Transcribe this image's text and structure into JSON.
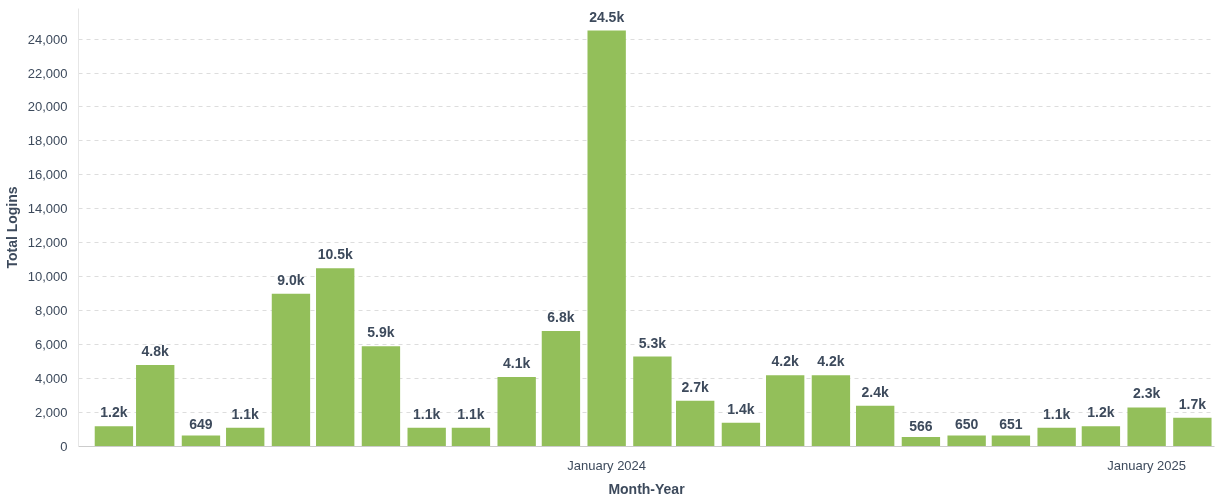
{
  "chart_data": {
    "type": "bar",
    "xlabel": "Month-Year",
    "ylabel": "Total Logins",
    "x": [
      "2023-02",
      "2023-03",
      "2023-04",
      "2023-05",
      "2023-06",
      "2023-07",
      "2023-08",
      "2023-09",
      "2023-10",
      "2023-11",
      "2023-12",
      "2024-01",
      "2024-02",
      "2024-03",
      "2024-04",
      "2024-05",
      "2024-06",
      "2024-07",
      "2024-08",
      "2024-09",
      "2024-10",
      "2024-11",
      "2024-12",
      "2025-01",
      "2025-02"
    ],
    "values": [
      1200,
      4800,
      649,
      1100,
      9000,
      10500,
      5900,
      1100,
      1100,
      4100,
      6800,
      24500,
      5300,
      2700,
      1400,
      4200,
      4200,
      2400,
      566,
      650,
      651,
      1100,
      1200,
      2300,
      1700
    ],
    "value_labels": [
      "1.2k",
      "4.8k",
      "649",
      "1.1k",
      "9.0k",
      "10.5k",
      "5.9k",
      "1.1k",
      "1.1k",
      "4.1k",
      "6.8k",
      "24.5k",
      "5.3k",
      "2.7k",
      "1.4k",
      "4.2k",
      "4.2k",
      "2.4k",
      "566",
      "650",
      "651",
      "1.1k",
      "1.2k",
      "2.3k",
      "1.7k"
    ],
    "color": "#93bf5a",
    "xlim": [
      "2023-01-08",
      "2025-02-16"
    ],
    "xticks": [
      {
        "value": "2024-01",
        "label": "January 2024"
      },
      {
        "value": "2025-01",
        "label": "January 2025"
      }
    ],
    "ylim": [
      0,
      25800
    ],
    "yticks": [
      {
        "value": 0,
        "label": "0"
      },
      {
        "value": 2000,
        "label": "2,000"
      },
      {
        "value": 4000,
        "label": "4,000"
      },
      {
        "value": 6000,
        "label": "6,000"
      },
      {
        "value": 8000,
        "label": "8,000"
      },
      {
        "value": 10000,
        "label": "10,000"
      },
      {
        "value": 12000,
        "label": "12,000"
      },
      {
        "value": 14000,
        "label": "14,000"
      },
      {
        "value": 16000,
        "label": "16,000"
      },
      {
        "value": 18000,
        "label": "18,000"
      },
      {
        "value": 20000,
        "label": "20,000"
      },
      {
        "value": 22000,
        "label": "22,000"
      },
      {
        "value": 24000,
        "label": "24,000"
      }
    ],
    "grid": "y"
  }
}
